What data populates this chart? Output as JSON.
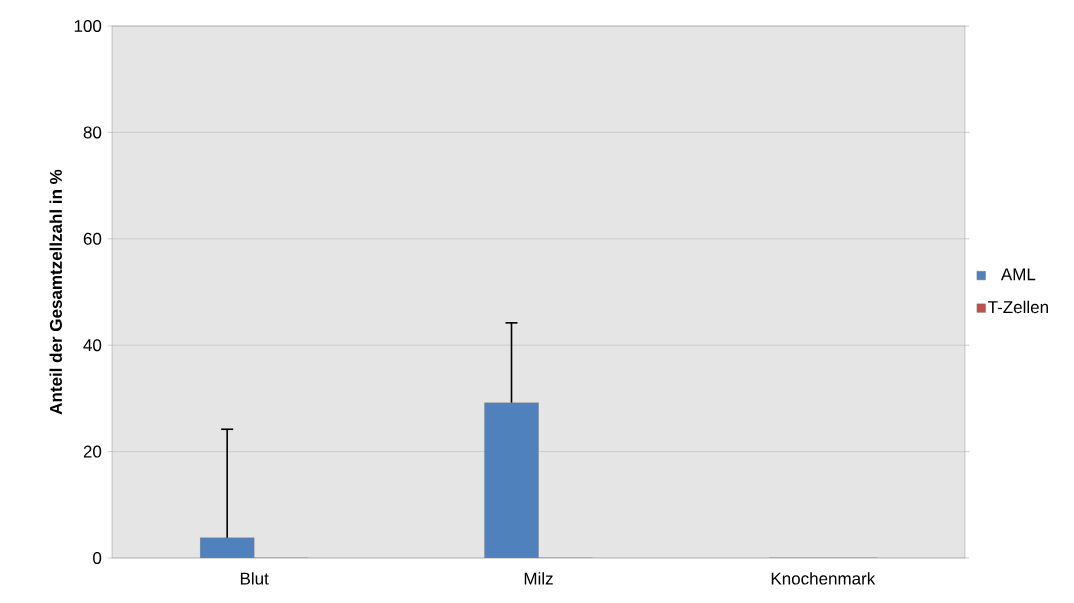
{
  "chart_data": {
    "type": "bar",
    "ylabel": "Anteil  der Gesamtzellzahl in %",
    "categories": [
      "Blut",
      "Milz",
      "Knochenmark"
    ],
    "series": [
      {
        "name": "AML",
        "color": "#4f81bd",
        "values": [
          3.8,
          29.2,
          0
        ],
        "errors": [
          [
            3.8,
            24.2
          ],
          [
            29.2,
            44.2
          ],
          null
        ]
      },
      {
        "name": "T-Zellen",
        "color": "#c0504d",
        "values": [
          0,
          0,
          0
        ]
      }
    ],
    "ylim": [
      0,
      100
    ],
    "yticks": [
      0,
      20,
      40,
      60,
      80,
      100
    ],
    "grid": "y",
    "legend": "right"
  }
}
